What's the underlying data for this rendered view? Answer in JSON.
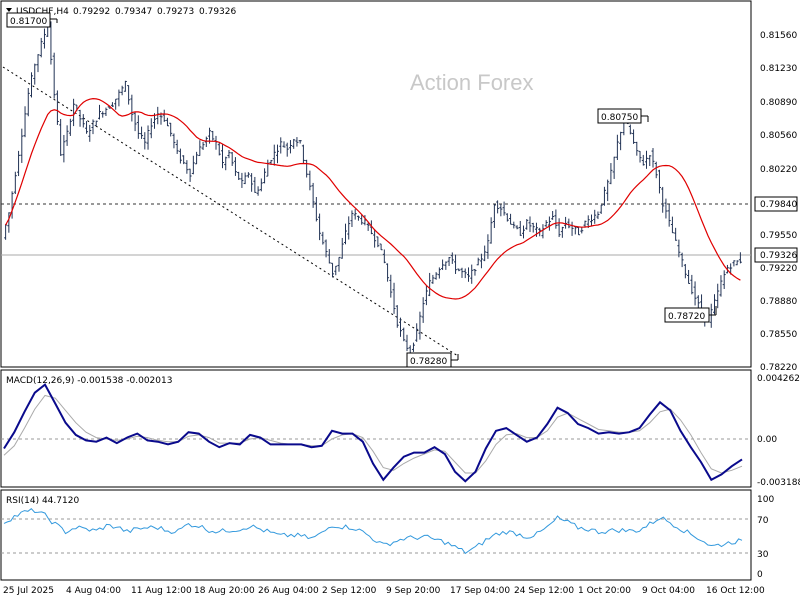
{
  "chart_data": [
    {
      "type": "candlestick",
      "title": "USDCHF,H4",
      "ohlc": {
        "open": "0.79292",
        "high": "0.79347",
        "low": "0.79273",
        "close": "0.79326"
      },
      "watermark": "Action Forex",
      "y_ticks": [
        "0.81560",
        "0.81230",
        "0.80890",
        "0.80560",
        "0.80220",
        "0.79550",
        "0.79220",
        "0.78880",
        "0.78550",
        "0.78220"
      ],
      "ylim": [
        0.7822,
        0.8186
      ],
      "x_ticks": [
        "25 Jul 2025",
        "4 Aug 04:00",
        "11 Aug 12:00",
        "18 Aug 20:00",
        "26 Aug 04:00",
        "2 Sep 12:00",
        "9 Sep 20:00",
        "17 Sep 04:00",
        "24 Sep 12:00",
        "1 Oct 20:00",
        "9 Oct 04:00",
        "16 Oct 12:00"
      ],
      "annotations": [
        {
          "text": "0.81700",
          "value": 0.817
        },
        {
          "text": "0.80750",
          "value": 0.8075
        },
        {
          "text": "0.78280",
          "value": 0.7828
        },
        {
          "text": "0.78720",
          "value": 0.7872
        }
      ],
      "horizontal_levels": [
        {
          "label": "0.79840",
          "value": 0.7984,
          "style": "dashed"
        },
        {
          "label": "0.79326",
          "value": 0.79326,
          "style": "solid-grey",
          "current": true
        }
      ],
      "trendline": {
        "from": {
          "x": "25 Jul 2025",
          "y": 0.8125
        },
        "to": {
          "x": "17 Sep 04:00",
          "y": 0.7828
        },
        "style": "dotted"
      },
      "price_path": [
        0.7955,
        0.798,
        0.802,
        0.806,
        0.81,
        0.813,
        0.815,
        0.817,
        0.81,
        0.804,
        0.806,
        0.809,
        0.8075,
        0.806,
        0.807,
        0.808,
        0.8085,
        0.809,
        0.81,
        0.811,
        0.808,
        0.806,
        0.805,
        0.807,
        0.808,
        0.8075,
        0.806,
        0.804,
        0.803,
        0.802,
        0.804,
        0.805,
        0.806,
        0.805,
        0.803,
        0.804,
        0.802,
        0.801,
        0.802,
        0.8,
        0.801,
        0.803,
        0.804,
        0.805,
        0.8045,
        0.8055,
        0.805,
        0.802,
        0.799,
        0.796,
        0.794,
        0.792,
        0.7935,
        0.796,
        0.798,
        0.7975,
        0.797,
        0.796,
        0.795,
        0.793,
        0.79,
        0.787,
        0.785,
        0.784,
        0.786,
        0.789,
        0.791,
        0.792,
        0.793,
        0.7935,
        0.7925,
        0.792,
        0.7915,
        0.7925,
        0.7935,
        0.795,
        0.799,
        0.7985,
        0.7975,
        0.7965,
        0.796,
        0.797,
        0.7965,
        0.796,
        0.797,
        0.7975,
        0.796,
        0.797,
        0.7965,
        0.796,
        0.797,
        0.7975,
        0.798,
        0.8,
        0.802,
        0.805,
        0.8075,
        0.806,
        0.804,
        0.803,
        0.804,
        0.802,
        0.799,
        0.797,
        0.795,
        0.793,
        0.791,
        0.7895,
        0.788,
        0.7872,
        0.789,
        0.791,
        0.7925,
        0.793,
        0.7932
      ],
      "moving_average_color": "#e00000",
      "candle_color": "#223355"
    },
    {
      "type": "line",
      "title": "MACD(12,26,9) -0.001538 -0.002013",
      "y_ticks": [
        "0.004262",
        "0.00",
        "-0.003188"
      ],
      "ylim": [
        -0.0036,
        0.0047
      ],
      "macd": [
        -0.0007,
        0.0005,
        0.002,
        0.0034,
        0.004,
        0.0026,
        0.0012,
        0.0003,
        -0.0001,
        -0.0002,
        0.0001,
        -0.0003,
        0.0001,
        0.0004,
        -0.0001,
        -0.0002,
        -0.0004,
        -0.0002,
        0.0005,
        0.0004,
        -0.0002,
        -0.0006,
        -0.0003,
        -0.0004,
        0.0003,
        0.0001,
        -0.0004,
        -0.0004,
        -0.0004,
        -0.0004,
        -0.0006,
        -0.0005,
        0.0006,
        0.0004,
        0.0004,
        -0.0002,
        -0.0018,
        -0.003,
        -0.0021,
        -0.0013,
        -0.001,
        -0.001,
        -0.0006,
        -0.0011,
        -0.0024,
        -0.0031,
        -0.0024,
        -0.0007,
        0.0006,
        0.0008,
        0.0003,
        -0.0002,
        0.0001,
        0.0011,
        0.0023,
        0.0019,
        0.0011,
        0.0008,
        0.0004,
        0.0005,
        0.0004,
        0.0005,
        0.0008,
        0.0018,
        0.0027,
        0.0021,
        0.0006,
        -0.0006,
        -0.0017,
        -0.003,
        -0.0026,
        -0.002,
        -0.0015
      ],
      "signal": [
        -0.0012,
        -0.0005,
        0.0008,
        0.0022,
        0.0032,
        0.003,
        0.0021,
        0.0012,
        0.0005,
        0.0001,
        0.0,
        -0.0001,
        0.0,
        0.0002,
        0.0001,
        -0.0001,
        -0.0002,
        -0.0002,
        0.0002,
        0.0003,
        0.0001,
        -0.0003,
        -0.0003,
        -0.0003,
        0.0,
        0.0001,
        -0.0001,
        -0.0003,
        -0.0004,
        -0.0004,
        -0.0005,
        -0.0005,
        0.0,
        0.0003,
        0.0004,
        0.0001,
        -0.0009,
        -0.0021,
        -0.0023,
        -0.0018,
        -0.0014,
        -0.0011,
        -0.0008,
        -0.0009,
        -0.0017,
        -0.0025,
        -0.0025,
        -0.0016,
        -0.0004,
        0.0003,
        0.0004,
        0.0001,
        0.0001,
        0.0006,
        0.0016,
        0.0019,
        0.0015,
        0.0011,
        0.0007,
        0.0006,
        0.0005,
        0.0005,
        0.0006,
        0.0012,
        0.002,
        0.0022,
        0.0014,
        0.0003,
        -0.001,
        -0.0022,
        -0.0025,
        -0.0023,
        -0.002
      ],
      "colors": {
        "macd": "#0a0a8c",
        "signal": "#aaaaaa"
      }
    },
    {
      "type": "line",
      "title": "RSI(14) 44.7120",
      "y_ticks": [
        "100",
        "70",
        "30",
        "0"
      ],
      "levels": [
        70,
        30
      ],
      "ylim": [
        0,
        100
      ],
      "values": [
        66,
        73,
        78,
        80,
        74,
        64,
        55,
        60,
        58,
        56,
        62,
        61,
        55,
        58,
        60,
        60,
        56,
        56,
        64,
        62,
        57,
        55,
        57,
        58,
        62,
        58,
        54,
        50,
        51,
        50,
        47,
        53,
        63,
        61,
        60,
        55,
        47,
        39,
        43,
        47,
        48,
        49,
        46,
        43,
        37,
        31,
        36,
        45,
        52,
        55,
        53,
        49,
        52,
        60,
        71,
        66,
        60,
        58,
        55,
        56,
        57,
        56,
        57,
        64,
        72,
        66,
        59,
        52,
        46,
        38,
        40,
        43,
        45
      ],
      "color": "#3399dd"
    }
  ]
}
